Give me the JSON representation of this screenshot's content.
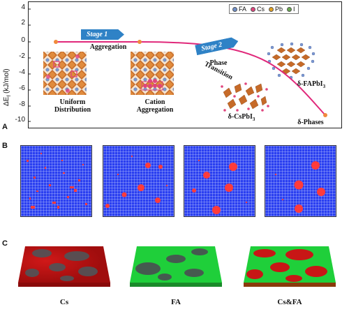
{
  "panel_a": {
    "letter": "A",
    "y_axis_title": "ΔE",
    "y_axis_title_sub": "f",
    "y_axis_unit": " (kJ/mol)",
    "y_ticks": [
      "4",
      "2",
      "0",
      "-2",
      "-4",
      "-6",
      "-8",
      "-10"
    ],
    "stage1": "Stage 1",
    "stage2": "Stage 2",
    "label_aggregation": "Aggregation",
    "label_phase": "Phase",
    "label_transition": "Transition",
    "caption_uniform_1": "Uniform",
    "caption_uniform_2": "Distribution",
    "caption_cation_1": "Cation",
    "caption_cation_2": "Aggregation",
    "label_delta_fapbi3": "δ-FAPbI",
    "label_delta_fapbi3_sub": "3",
    "label_delta_cspbi3": "δ-CsPbI",
    "label_delta_cspbi3_sub": "3",
    "label_delta_phases": "δ-Phases",
    "legend": [
      {
        "label": "FA",
        "color": "#6e8fc9"
      },
      {
        "label": "Cs",
        "color": "#e0457e"
      },
      {
        "label": "Pb",
        "color": "#e3a11f"
      },
      {
        "label": "I",
        "color": "#6aa84f"
      }
    ],
    "curve_color": "#e0287a"
  },
  "panel_b": {
    "letter": "B",
    "sim_color": "#2a3ff0",
    "cluster_color": "#ff3b3b"
  },
  "panel_c": {
    "letter": "C",
    "labels": [
      "Cs",
      "FA",
      "Cs&FA"
    ]
  }
}
